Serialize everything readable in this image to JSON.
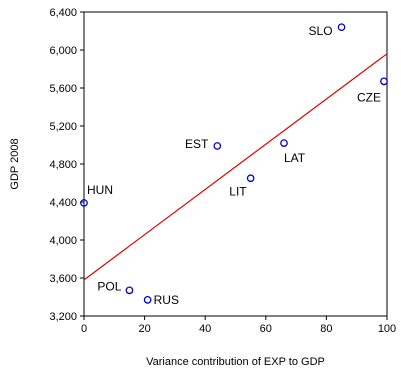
{
  "chart_data": {
    "type": "scatter",
    "title": "",
    "xlabel": "Variance contribution of EXP to GDP",
    "ylabel": "GDP 2008",
    "xlim": [
      0,
      100
    ],
    "ylim": [
      3200,
      6400
    ],
    "x_ticks": [
      0,
      20,
      40,
      60,
      80,
      100
    ],
    "x_tick_labels": [
      "0",
      "20",
      "40",
      "60",
      "80",
      "100"
    ],
    "y_ticks": [
      3200,
      3600,
      4000,
      4400,
      4800,
      5200,
      5600,
      6000,
      6400
    ],
    "y_tick_labels": [
      "3,200",
      "3,600",
      "4,000",
      "4,400",
      "4,800",
      "5,200",
      "5,600",
      "6,000",
      "6,400"
    ],
    "grid": false,
    "point_color": "#0000cc",
    "line_color": "#dd0000",
    "points": [
      {
        "label": "SLO",
        "x": 85,
        "y": 6240
      },
      {
        "label": "CZE",
        "x": 99,
        "y": 5670
      },
      {
        "label": "LAT",
        "x": 66,
        "y": 5020
      },
      {
        "label": "EST",
        "x": 44,
        "y": 4990
      },
      {
        "label": "LIT",
        "x": 55,
        "y": 4650
      },
      {
        "label": "HUN",
        "x": 0,
        "y": 4390
      },
      {
        "label": "POL",
        "x": 15,
        "y": 3470
      },
      {
        "label": "RUS",
        "x": 21,
        "y": 3370
      }
    ],
    "fit_line": {
      "x": [
        0,
        100
      ],
      "y": [
        3580,
        5960
      ]
    }
  }
}
